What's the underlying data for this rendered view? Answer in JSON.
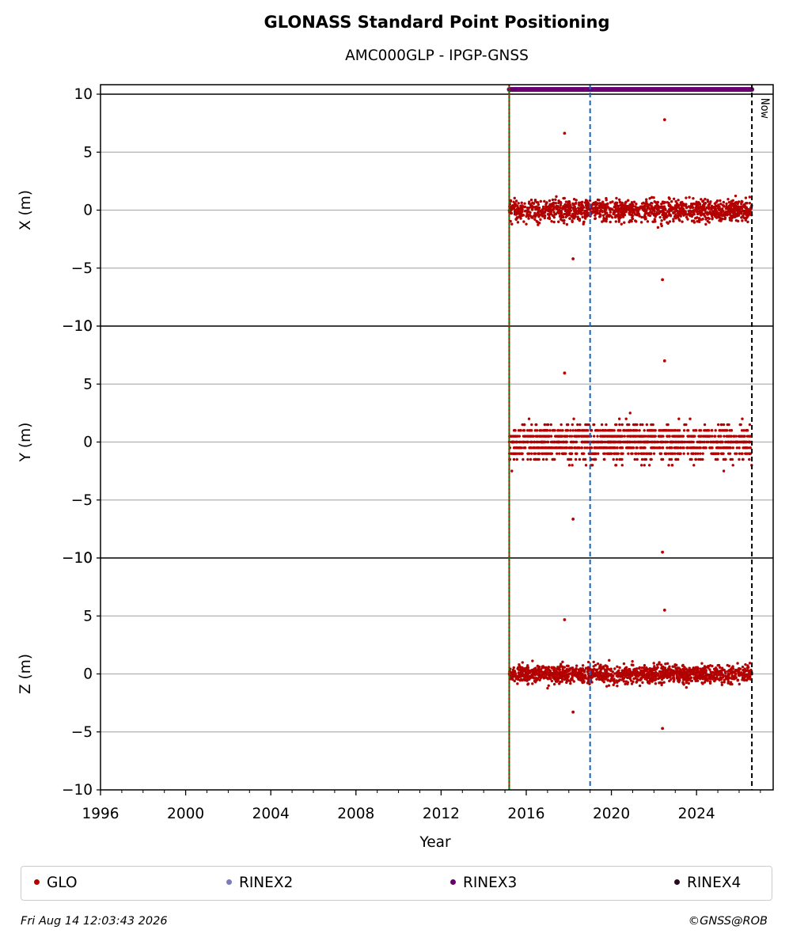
{
  "chart_data": {
    "type": "scatter",
    "title": "GLONASS Standard Point Positioning",
    "subtitle": "AMC000GLP - IPGP-GNSS",
    "xlabel": "Year",
    "xlim": [
      1996,
      2027.6
    ],
    "xticks": [
      1996,
      2000,
      2004,
      2008,
      2012,
      2016,
      2020,
      2024
    ],
    "grid": "horizontal",
    "legend_placement": "bottom",
    "panels": [
      {
        "ylabel": "X (m)",
        "ylim": [
          -10,
          10
        ],
        "yticks": [
          10,
          5,
          0,
          -5,
          -10
        ],
        "series": [
          {
            "name": "GLO",
            "x_range": [
              2015.2,
              2026.6
            ],
            "mean": 0,
            "spread": 1.2,
            "min": -6.0,
            "max": 7.8
          }
        ]
      },
      {
        "ylabel": "Y (m)",
        "ylim": [
          -10,
          10
        ],
        "yticks": [
          -10,
          5,
          0,
          -5,
          -10
        ],
        "series": [
          {
            "name": "GLO",
            "x_range": [
              2015.2,
              2026.6
            ],
            "mean": 0,
            "spread": 2.0,
            "min": -9.5,
            "max": 7.0
          }
        ]
      },
      {
        "ylabel": "Z (m)",
        "ylim": [
          -10,
          10
        ],
        "yticks": [
          -10,
          5,
          0,
          -5,
          -10
        ],
        "series": [
          {
            "name": "GLO",
            "x_range": [
              2015.2,
              2026.6
            ],
            "mean": 0,
            "spread": 1.0,
            "min": -4.7,
            "max": 5.5
          }
        ]
      }
    ],
    "rinex3_bar": {
      "x_range": [
        2015.2,
        2026.6
      ]
    },
    "vertical_lines": [
      {
        "x": 2015.2,
        "color": "#008000",
        "style": "solid"
      },
      {
        "x": 2015.2,
        "color": "#cc0000",
        "style": "dotted"
      },
      {
        "x": 2019.0,
        "color": "#1565c0",
        "style": "dashed"
      },
      {
        "x": 2026.6,
        "color": "#000000",
        "style": "dashed",
        "label": "Now"
      }
    ],
    "colors": {
      "GLO": "#b30000",
      "RINEX2": "#7b7bbf",
      "RINEX3": "#6a0070",
      "RINEX4": "#2a0a1e"
    }
  },
  "legend": [
    {
      "label": "GLO",
      "color": "#b30000"
    },
    {
      "label": "RINEX2",
      "color": "#7b7bbf"
    },
    {
      "label": "RINEX3",
      "color": "#6a0070"
    },
    {
      "label": "RINEX4",
      "color": "#2a0a1e"
    }
  ],
  "footer": {
    "date": "Fri Aug 14 12:03:43 2026",
    "copyright": "©GNSS@ROB"
  }
}
